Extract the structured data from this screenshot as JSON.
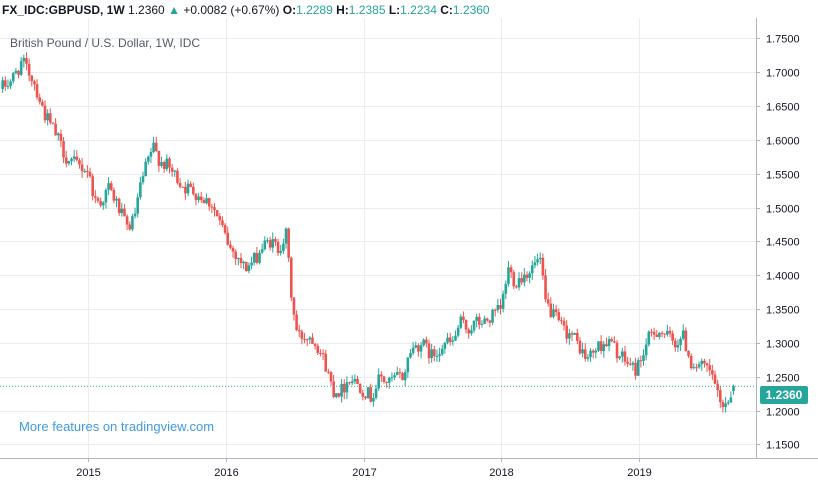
{
  "header": {
    "symbol": "FX_IDC:GBPUSD, 1W",
    "last": "1.2360",
    "change_arrow": "▲",
    "change": "+0.0082 (+0.67%)",
    "open_label": "O:",
    "open": "1.2289",
    "high_label": "H:",
    "high": "1.2385",
    "low_label": "L:",
    "low": "1.2234",
    "close_label": "C:",
    "close": "1.2360"
  },
  "subtitle": "British Pound / U.S. Dollar, 1W, IDC",
  "promo": "More features on tradingview.com",
  "last_price_tag": "1.2360",
  "colors": {
    "up": "#26a69a",
    "down": "#ef5350",
    "grid": "#e9edf2",
    "axis_text": "#131722",
    "price_line": "#26a69a"
  },
  "chart_data": {
    "type": "candlestick",
    "ylim": [
      1.13,
      1.78
    ],
    "y_ticks": [
      "1.7500",
      "1.7000",
      "1.6500",
      "1.6000",
      "1.5500",
      "1.5000",
      "1.4500",
      "1.4000",
      "1.3500",
      "1.3000",
      "1.2500",
      "1.2000",
      "1.1500"
    ],
    "x_range": [
      2014.36,
      2019.85
    ],
    "x_ticks": [
      {
        "label": "2015",
        "x": 2015.0
      },
      {
        "label": "2016",
        "x": 2016.0
      },
      {
        "label": "2017",
        "x": 2017.0
      },
      {
        "label": "2018",
        "x": 2018.0
      },
      {
        "label": "2019",
        "x": 2019.0
      }
    ],
    "last_price": 1.236,
    "path": [
      [
        2014.36,
        1.675
      ],
      [
        2014.45,
        1.69
      ],
      [
        2014.52,
        1.715
      ],
      [
        2014.6,
        1.69
      ],
      [
        2014.68,
        1.64
      ],
      [
        2014.76,
        1.61
      ],
      [
        2014.85,
        1.57
      ],
      [
        2014.95,
        1.56
      ],
      [
        2015.0,
        1.555
      ],
      [
        2015.05,
        1.51
      ],
      [
        2015.1,
        1.51
      ],
      [
        2015.15,
        1.53
      ],
      [
        2015.22,
        1.5
      ],
      [
        2015.28,
        1.47
      ],
      [
        2015.33,
        1.48
      ],
      [
        2015.38,
        1.53
      ],
      [
        2015.42,
        1.56
      ],
      [
        2015.47,
        1.59
      ],
      [
        2015.52,
        1.57
      ],
      [
        2015.58,
        1.56
      ],
      [
        2015.64,
        1.545
      ],
      [
        2015.7,
        1.53
      ],
      [
        2015.76,
        1.525
      ],
      [
        2015.83,
        1.515
      ],
      [
        2015.9,
        1.505
      ],
      [
        2015.97,
        1.47
      ],
      [
        2016.03,
        1.44
      ],
      [
        2016.08,
        1.43
      ],
      [
        2016.14,
        1.41
      ],
      [
        2016.2,
        1.42
      ],
      [
        2016.26,
        1.44
      ],
      [
        2016.32,
        1.45
      ],
      [
        2016.38,
        1.44
      ],
      [
        2016.44,
        1.46
      ],
      [
        2016.48,
        1.36
      ],
      [
        2016.52,
        1.31
      ],
      [
        2016.57,
        1.31
      ],
      [
        2016.62,
        1.31
      ],
      [
        2016.66,
        1.3
      ],
      [
        2016.72,
        1.27
      ],
      [
        2016.78,
        1.23
      ],
      [
        2016.84,
        1.23
      ],
      [
        2016.9,
        1.25
      ],
      [
        2016.96,
        1.24
      ],
      [
        2017.0,
        1.23
      ],
      [
        2017.06,
        1.22
      ],
      [
        2017.12,
        1.25
      ],
      [
        2017.18,
        1.24
      ],
      [
        2017.24,
        1.25
      ],
      [
        2017.29,
        1.25
      ],
      [
        2017.34,
        1.29
      ],
      [
        2017.42,
        1.3
      ],
      [
        2017.5,
        1.28
      ],
      [
        2017.58,
        1.3
      ],
      [
        2017.65,
        1.3
      ],
      [
        2017.7,
        1.33
      ],
      [
        2017.76,
        1.32
      ],
      [
        2017.82,
        1.33
      ],
      [
        2017.88,
        1.33
      ],
      [
        2017.94,
        1.34
      ],
      [
        2018.0,
        1.35
      ],
      [
        2018.05,
        1.41
      ],
      [
        2018.1,
        1.39
      ],
      [
        2018.16,
        1.4
      ],
      [
        2018.22,
        1.41
      ],
      [
        2018.28,
        1.425
      ],
      [
        2018.32,
        1.36
      ],
      [
        2018.38,
        1.34
      ],
      [
        2018.45,
        1.32
      ],
      [
        2018.52,
        1.31
      ],
      [
        2018.58,
        1.29
      ],
      [
        2018.62,
        1.275
      ],
      [
        2018.68,
        1.29
      ],
      [
        2018.74,
        1.3
      ],
      [
        2018.8,
        1.3
      ],
      [
        2018.86,
        1.28
      ],
      [
        2018.92,
        1.27
      ],
      [
        2018.98,
        1.26
      ],
      [
        2019.02,
        1.28
      ],
      [
        2019.08,
        1.31
      ],
      [
        2019.14,
        1.32
      ],
      [
        2019.2,
        1.31
      ],
      [
        2019.26,
        1.3
      ],
      [
        2019.32,
        1.31
      ],
      [
        2019.38,
        1.27
      ],
      [
        2019.44,
        1.265
      ],
      [
        2019.5,
        1.26
      ],
      [
        2019.55,
        1.245
      ],
      [
        2019.58,
        1.21
      ],
      [
        2019.62,
        1.21
      ],
      [
        2019.66,
        1.22
      ],
      [
        2019.7,
        1.236
      ]
    ]
  }
}
